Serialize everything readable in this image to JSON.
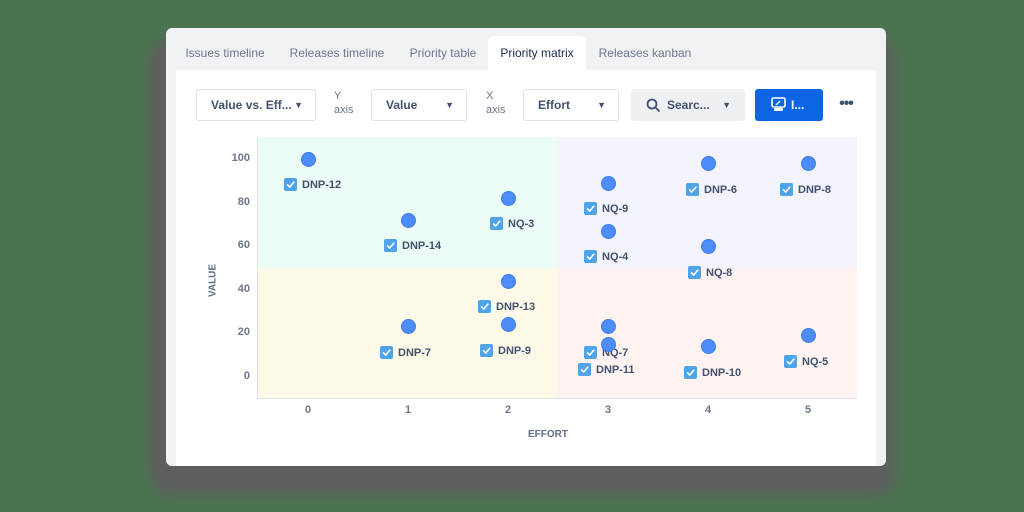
{
  "tabs": [
    {
      "label": "Issues timeline",
      "active": false
    },
    {
      "label": "Releases timeline",
      "active": false
    },
    {
      "label": "Priority table",
      "active": false
    },
    {
      "label": "Priority matrix",
      "active": true
    },
    {
      "label": "Releases kanban",
      "active": false
    }
  ],
  "toolbar": {
    "view_select": "Value vs. Eff...",
    "y_axis_label_1": "Y",
    "y_axis_label_2": "axis",
    "y_axis_select": "Value",
    "x_axis_label_1": "X",
    "x_axis_label_2": "axis",
    "x_axis_select": "Effort",
    "search_label": "Searc...",
    "primary_label": "I...",
    "more_label": "•••",
    "chevron": "⌄"
  },
  "colors": {
    "primary": "#0c66e4",
    "dot": "#4c8dfb",
    "checkbox": "#4fa3e8",
    "quad_top_left": "#ebfdf6",
    "quad_top_right": "#f4f4ff",
    "quad_bottom_left": "#fefae9",
    "quad_bottom_right": "#fff3f2",
    "background": "#4a7350"
  },
  "chart_data": {
    "type": "scatter",
    "title": "",
    "xlabel": "EFFORT",
    "ylabel": "VALUE",
    "xlim": [
      -0.5,
      5.5
    ],
    "ylim": [
      -8,
      107
    ],
    "x_ticks": [
      "0",
      "1",
      "2",
      "3",
      "4",
      "5"
    ],
    "y_ticks": [
      "0",
      "20",
      "40",
      "60",
      "80",
      "100"
    ],
    "grid": false,
    "quadrants": {
      "x_split": 2.5,
      "y_split": 50,
      "colors": [
        "#ebfdf6",
        "#f4f4ff",
        "#fefae9",
        "#fff3f2"
      ]
    },
    "points": [
      {
        "label": "DNP-12",
        "x": 0,
        "y": 100
      },
      {
        "label": "DNP-14",
        "x": 1,
        "y": 72
      },
      {
        "label": "NQ-3",
        "x": 2,
        "y": 82
      },
      {
        "label": "NQ-9",
        "x": 3,
        "y": 89
      },
      {
        "label": "DNP-6",
        "x": 4,
        "y": 98
      },
      {
        "label": "DNP-8",
        "x": 5,
        "y": 98
      },
      {
        "label": "NQ-4",
        "x": 3,
        "y": 67
      },
      {
        "label": "NQ-8",
        "x": 4,
        "y": 60
      },
      {
        "label": "DNP-13",
        "x": 2,
        "y": 44
      },
      {
        "label": "DNP-7",
        "x": 1,
        "y": 23
      },
      {
        "label": "DNP-9",
        "x": 2,
        "y": 24
      },
      {
        "label": "NQ-7",
        "x": 3,
        "y": 23
      },
      {
        "label": "DNP-11",
        "x": 3,
        "y": 15
      },
      {
        "label": "DNP-10",
        "x": 4,
        "y": 14
      },
      {
        "label": "NQ-5",
        "x": 5,
        "y": 19
      }
    ]
  }
}
